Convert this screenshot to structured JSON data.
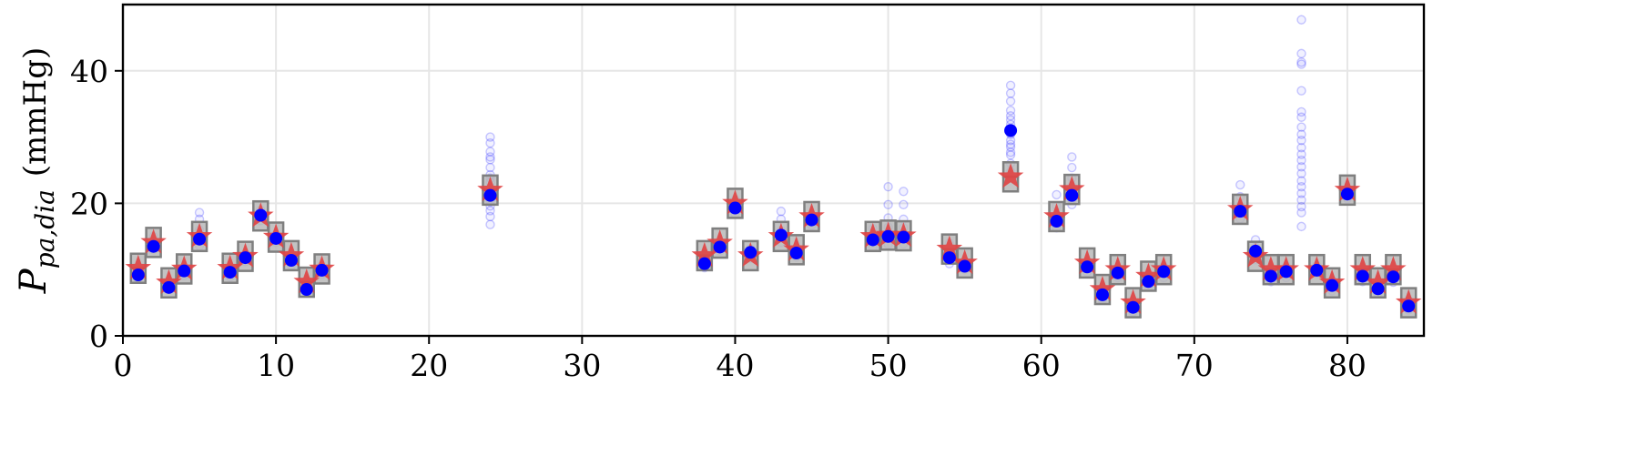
{
  "chart_data": {
    "type": "scatter",
    "title": "",
    "xlabel": "",
    "ylabel_main": "P",
    "ylabel_subscript": "pa,dia",
    "ylabel_unit": "(mmHg)",
    "xlim": [
      0,
      85
    ],
    "ylim": [
      0,
      50
    ],
    "xticks": [
      0,
      10,
      20,
      30,
      40,
      50,
      60,
      70,
      80
    ],
    "yticks": [
      0,
      20,
      40
    ],
    "grid": true,
    "legend": "none",
    "colors": {
      "samples": "#3b3bff",
      "mean": "#0000ff",
      "target": "#e04545",
      "interval_fill": "#b9b9b9",
      "interval_edge": "#7f7f7f",
      "grid": "#e6e6e6"
    },
    "series": [
      {
        "name": "",
        "marker": "square",
        "x": [
          1,
          2,
          3,
          4,
          5,
          7,
          8,
          9,
          10,
          11,
          12,
          13,
          24,
          38,
          39,
          40,
          41,
          43,
          44,
          45,
          49,
          50,
          51,
          54,
          55,
          58,
          61,
          62,
          63,
          64,
          65,
          66,
          67,
          68,
          73,
          74,
          75,
          76,
          78,
          79,
          80,
          81,
          82,
          83,
          84
        ],
        "values": [
          10.2,
          14.1,
          8.0,
          10.1,
          15.0,
          10.2,
          12.0,
          18.1,
          14.9,
          12.1,
          8.1,
          10.1,
          22.0,
          12.1,
          14.0,
          20.0,
          12.1,
          15.0,
          13.0,
          18.0,
          15.0,
          15.2,
          15.1,
          13.1,
          11.0,
          24.0,
          18.0,
          22.1,
          11.0,
          7.0,
          10.0,
          5.0,
          9.0,
          10.0,
          19.1,
          12.0,
          10.0,
          10.0,
          10.0,
          8.0,
          22.0,
          10.0,
          8.0,
          10.0,
          5.0
        ]
      },
      {
        "name": "",
        "marker": "star",
        "x": [
          1,
          2,
          3,
          4,
          5,
          7,
          8,
          9,
          10,
          11,
          12,
          13,
          24,
          38,
          39,
          40,
          41,
          43,
          44,
          45,
          49,
          50,
          51,
          54,
          55,
          58,
          61,
          62,
          63,
          64,
          65,
          66,
          67,
          68,
          73,
          74,
          75,
          76,
          78,
          79,
          80,
          81,
          82,
          83,
          84
        ],
        "values": [
          10.2,
          14.1,
          8.0,
          10.1,
          15.0,
          10.2,
          12.0,
          18.1,
          14.9,
          12.1,
          8.1,
          10.1,
          22.0,
          12.1,
          14.0,
          20.0,
          12.1,
          15.0,
          13.0,
          18.0,
          15.0,
          15.2,
          15.1,
          13.1,
          11.0,
          24.0,
          18.0,
          22.1,
          11.0,
          7.0,
          10.0,
          5.0,
          9.0,
          10.0,
          19.1,
          12.0,
          10.0,
          10.0,
          10.0,
          8.0,
          22.0,
          10.0,
          8.0,
          10.0,
          5.0
        ]
      },
      {
        "name": "",
        "marker": "circle",
        "x": [
          1,
          2,
          3,
          4,
          5,
          7,
          8,
          9,
          10,
          11,
          12,
          13,
          24,
          38,
          39,
          40,
          41,
          43,
          44,
          45,
          49,
          50,
          51,
          54,
          55,
          58,
          61,
          62,
          63,
          64,
          65,
          66,
          67,
          68,
          73,
          74,
          75,
          76,
          78,
          79,
          80,
          81,
          82,
          83,
          84
        ],
        "values": [
          9.2,
          13.5,
          7.3,
          9.8,
          14.6,
          9.6,
          11.8,
          18.2,
          14.7,
          11.4,
          7.0,
          9.9,
          21.2,
          10.9,
          13.4,
          19.3,
          12.6,
          15.2,
          12.5,
          17.5,
          14.5,
          15.0,
          14.9,
          11.8,
          10.5,
          31.0,
          17.3,
          21.2,
          10.4,
          6.2,
          9.5,
          4.3,
          8.2,
          9.7,
          18.8,
          12.8,
          9.0,
          9.7,
          9.9,
          7.6,
          21.4,
          9.0,
          7.1,
          8.9,
          4.5
        ]
      },
      {
        "name": "",
        "marker": "circle-faint",
        "x": [
          1,
          1,
          2,
          2,
          2,
          3,
          3,
          4,
          4,
          5,
          5,
          5,
          5,
          5,
          7,
          7,
          8,
          8,
          9,
          9,
          10,
          10,
          11,
          11,
          12,
          12,
          13,
          13,
          24,
          24,
          24,
          24,
          24,
          24,
          24,
          24,
          24,
          24,
          24,
          24,
          24,
          24,
          24,
          24,
          24,
          38,
          38,
          39,
          39,
          40,
          40,
          40,
          41,
          41,
          43,
          43,
          43,
          43,
          44,
          44,
          45,
          45,
          49,
          49,
          49,
          50,
          50,
          50,
          50,
          50,
          50,
          51,
          51,
          51,
          51,
          51,
          51,
          54,
          54,
          54,
          55,
          55,
          58,
          58,
          58,
          58,
          58,
          58,
          58,
          58,
          58,
          58,
          58,
          58,
          58,
          58,
          58,
          58,
          58,
          61,
          61,
          61,
          61,
          62,
          62,
          62,
          62,
          62,
          62,
          62,
          63,
          63,
          64,
          64,
          65,
          65,
          66,
          66,
          67,
          67,
          68,
          68,
          73,
          73,
          73,
          73,
          74,
          74,
          74,
          75,
          75,
          76,
          76,
          77,
          77,
          77,
          77,
          77,
          77,
          77,
          77,
          77,
          77,
          77,
          77,
          77,
          77,
          77,
          77,
          77,
          77,
          77,
          77,
          77,
          77,
          78,
          78,
          79,
          79,
          80,
          80,
          81,
          81,
          82,
          82,
          83,
          83,
          84,
          84
        ],
        "values": [
          8.8,
          9.9,
          13.0,
          14.3,
          15.0,
          7.0,
          8.0,
          9.1,
          10.3,
          13.6,
          14.8,
          16.0,
          17.6,
          18.6,
          8.9,
          10.2,
          11.2,
          12.4,
          17.4,
          19.0,
          14.1,
          15.3,
          10.6,
          12.0,
          6.6,
          7.6,
          9.3,
          10.6,
          16.8,
          18.0,
          18.9,
          19.6,
          20.2,
          20.9,
          21.6,
          22.4,
          23.2,
          24.3,
          25.4,
          26.6,
          27.8,
          29.1,
          30.0,
          27.0,
          23.8,
          10.3,
          11.5,
          12.8,
          14.1,
          18.4,
          19.7,
          20.6,
          11.7,
          13.1,
          14.1,
          15.9,
          17.6,
          18.8,
          11.9,
          13.0,
          16.7,
          18.2,
          13.4,
          14.6,
          16.2,
          13.8,
          15.2,
          16.4,
          17.8,
          19.8,
          22.5,
          13.9,
          15.2,
          16.3,
          17.6,
          19.8,
          21.8,
          10.9,
          12.6,
          14.0,
          10.0,
          11.3,
          24.8,
          26.0,
          27.3,
          28.5,
          29.5,
          30.4,
          31.2,
          31.9,
          32.6,
          33.2,
          34.0,
          35.4,
          36.6,
          37.8,
          30.6,
          28.9,
          27.7,
          16.3,
          18.1,
          19.6,
          21.3,
          19.8,
          20.6,
          21.5,
          22.6,
          23.8,
          25.4,
          27.0,
          9.6,
          11.1,
          5.4,
          6.8,
          8.8,
          10.2,
          3.6,
          4.9,
          7.4,
          8.9,
          8.8,
          10.5,
          17.7,
          19.6,
          21.0,
          22.8,
          11.5,
          13.0,
          14.5,
          8.2,
          9.8,
          8.8,
          10.5,
          16.5,
          18.6,
          19.5,
          20.5,
          21.5,
          22.5,
          23.4,
          24.5,
          25.5,
          26.5,
          27.4,
          28.4,
          29.5,
          30.4,
          31.5,
          33.0,
          33.8,
          37.0,
          41.0,
          41.3,
          42.6,
          47.7,
          9.4,
          10.6,
          6.8,
          8.4,
          20.7,
          22.0,
          8.2,
          9.7,
          6.4,
          7.7,
          8.1,
          9.9,
          3.9,
          5.4
        ]
      }
    ]
  }
}
